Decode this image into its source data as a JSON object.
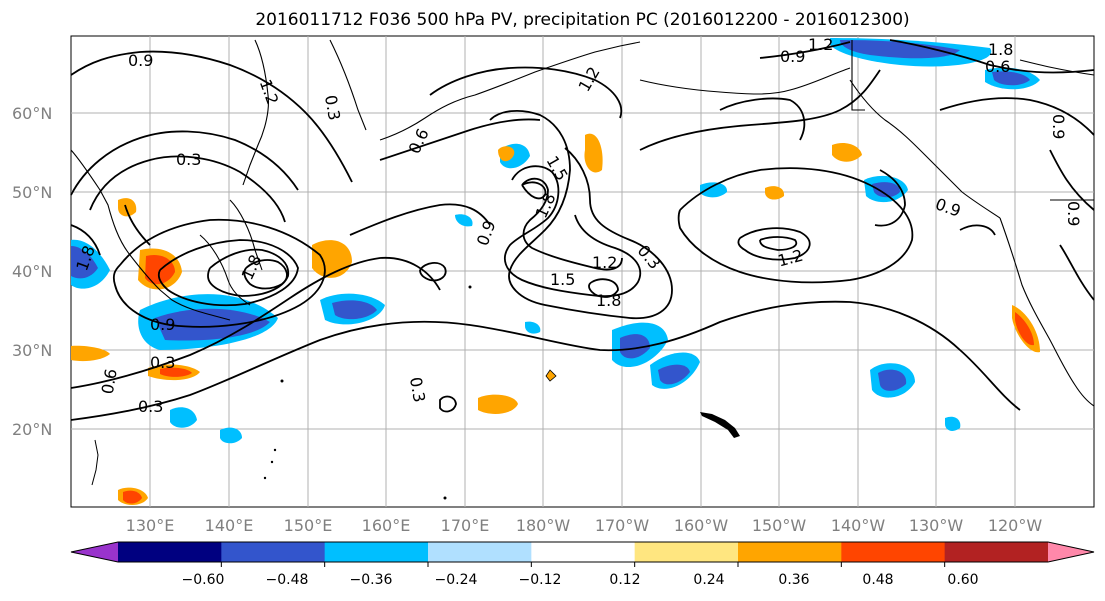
{
  "title": "2016011712 F036 500 hPa PV, precipitation PC (2016012200 - 2016012300)",
  "lat_labels": [
    "60°N",
    "50°N",
    "40°N",
    "30°N",
    "20°N"
  ],
  "lon_labels": [
    "130°E",
    "140°E",
    "150°E",
    "160°E",
    "170°E",
    "180°W",
    "170°W",
    "160°W",
    "150°W",
    "140°W",
    "130°W",
    "120°W"
  ],
  "colorbar": {
    "ticks": [
      "−0.60",
      "−0.48",
      "−0.36",
      "−0.24",
      "−0.12",
      "0.12",
      "0.24",
      "0.36",
      "0.48",
      "0.60"
    ],
    "colors": [
      "#9933cc",
      "#000080",
      "#3355cc",
      "#00bfff",
      "#b0e0ff",
      "#ffffff",
      "#ffe680",
      "#ffa500",
      "#ff4500",
      "#b22222",
      "#ff88aa"
    ]
  },
  "contour_labels": [
    "0.9",
    "1.2",
    "0.3",
    "0.6",
    "0.3",
    "0.3",
    "1.2",
    "0.9",
    "1.8",
    "1.5",
    "1.2",
    "0.9",
    "0.3",
    "1.5",
    "1.8",
    "1.8",
    "1.2",
    "0.9",
    "1.2",
    "0.9",
    "0.9",
    "0.3",
    "0.3",
    "0.6",
    "1.8",
    "0.9",
    "0.6",
    "1.8"
  ]
}
